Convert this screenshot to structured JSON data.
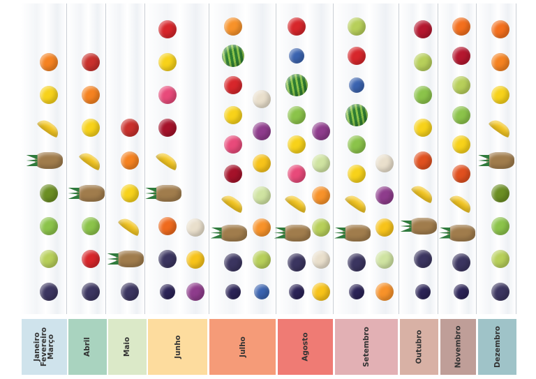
{
  "fruit_colors": {
    "orange": "#f58220",
    "lemon": "#f7d21a",
    "banana": "#f3c623",
    "pineapple": "#a07c4c",
    "kiwi": "#6b8e23",
    "apple": "#8bc34a",
    "pear": "#b7cf5a",
    "blackberry": "#3b3560",
    "red-slices": "#c9302c",
    "strawberry": "#d7262b",
    "raspberry": "#e84a7a",
    "cherry": "#a5122a",
    "peach": "#ef6a1d",
    "blueberry": "#3a63b0",
    "plum": "#2b2357",
    "melon": "#e9dfcc",
    "mango": "#f7c31a",
    "fig": "#8e3c8c",
    "apricot": "#f7922a",
    "watermelon": "#2f7d32",
    "grapes": "#cfe3a1",
    "pomegranate": "#b5172f",
    "persimmon": "#e0501f",
    "tangerine": "#f36f1d"
  },
  "months": [
    {
      "label": "Janeiro\nFevereiro\nMarço",
      "color": "#cfe3ec",
      "fruits": [
        "orange",
        "lemon",
        "banana",
        "pineapple",
        "kiwi",
        "apple",
        "pear",
        "blackberry"
      ],
      "extra": []
    },
    {
      "label": "Abril",
      "color": "#a9d3bf",
      "fruits": [
        "red-slices",
        "orange",
        "lemon",
        "banana",
        "pineapple",
        "apple",
        "strawberry",
        "blackberry"
      ],
      "extra": []
    },
    {
      "label": "Maio",
      "color": "#dbe9c8",
      "fruits": [
        "red-slices",
        "orange",
        "lemon",
        "banana",
        "pineapple",
        "blackberry"
      ],
      "extra": []
    },
    {
      "label": "Junho",
      "color": "#fddc9e",
      "fruits": [
        "strawberry",
        "lemon",
        "raspberry",
        "cherry",
        "banana",
        "pineapple",
        "peach",
        "blackberry",
        "plum"
      ],
      "extra": [
        "melon",
        "mango",
        "fig"
      ]
    },
    {
      "label": "Julho",
      "color": "#f59b78",
      "fruits": [
        "apricot",
        "watermelon",
        "strawberry",
        "lemon",
        "raspberry",
        "cherry",
        "banana",
        "pineapple",
        "blackberry",
        "plum"
      ],
      "extra": [
        "melon",
        "fig",
        "mango",
        "grapes",
        "apricot",
        "pear",
        "blueberry"
      ]
    },
    {
      "label": "Agosto",
      "color": "#ef7b74",
      "fruits": [
        "strawberry",
        "blueberry",
        "watermelon",
        "apple",
        "lemon",
        "raspberry",
        "banana",
        "pineapple",
        "blackberry",
        "plum"
      ],
      "extra": [
        "fig",
        "grapes",
        "apricot",
        "pear",
        "melon",
        "mango"
      ]
    },
    {
      "label": "Setembro",
      "color": "#e2b0b4",
      "fruits": [
        "pear",
        "strawberry",
        "blueberry",
        "watermelon",
        "apple",
        "lemon",
        "banana",
        "pineapple",
        "blackberry",
        "plum"
      ],
      "extra": [
        "melon",
        "fig",
        "mango",
        "grapes",
        "apricot"
      ]
    },
    {
      "label": "Outubro",
      "color": "#d8b1a5",
      "fruits": [
        "pomegranate",
        "pear",
        "apple",
        "lemon",
        "persimmon",
        "banana",
        "pineapple",
        "blackberry",
        "plum"
      ],
      "extra": []
    },
    {
      "label": "Novembro",
      "color": "#bf9e98",
      "fruits": [
        "tangerine",
        "pomegranate",
        "pear",
        "apple",
        "lemon",
        "persimmon",
        "banana",
        "pineapple",
        "blackberry",
        "plum"
      ],
      "extra": []
    },
    {
      "label": "Dezembro",
      "color": "#9fc3c8",
      "fruits": [
        "tangerine",
        "orange",
        "lemon",
        "banana",
        "pineapple",
        "kiwi",
        "apple",
        "pear",
        "blackberry"
      ],
      "extra": []
    }
  ]
}
